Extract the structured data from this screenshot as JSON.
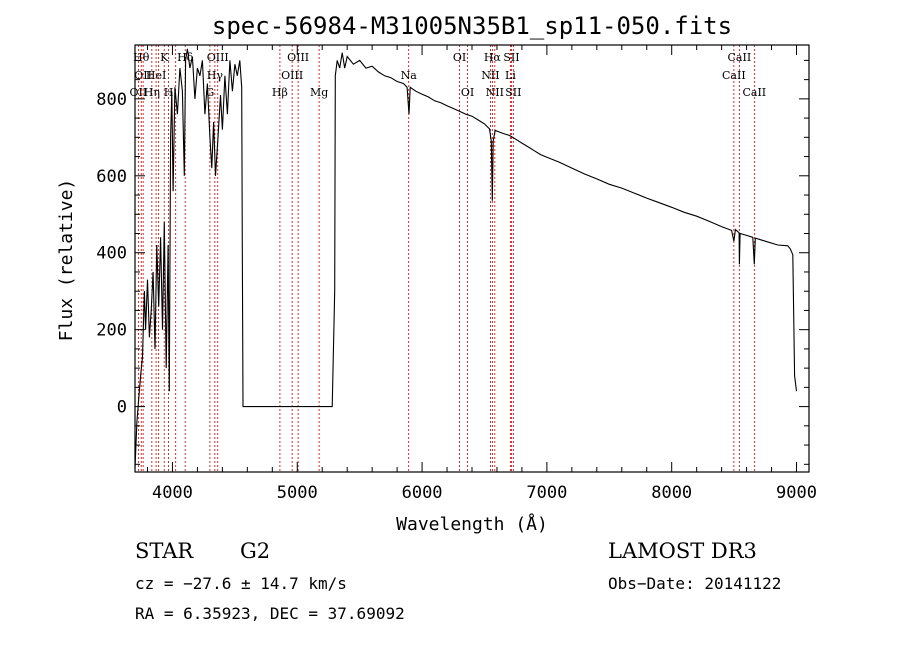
{
  "chart_data": {
    "type": "line",
    "title": "spec-56984-M31005N35B1_sp11-050.fits",
    "xlabel": "Wavelength (Å)",
    "ylabel": "Flux (relative)",
    "xlim": [
      3700,
      9100
    ],
    "ylim": [
      -170,
      940
    ],
    "x_ticks": [
      4000,
      5000,
      6000,
      7000,
      8000,
      9000
    ],
    "y_ticks": [
      0,
      200,
      400,
      600,
      800
    ],
    "x_minor_step": 200,
    "y_minor_step": 50,
    "grid": false,
    "series": [
      {
        "name": "spectrum",
        "points": [
          [
            3700,
            -160
          ],
          [
            3715,
            -40
          ],
          [
            3730,
            20
          ],
          [
            3745,
            80
          ],
          [
            3760,
            130
          ],
          [
            3775,
            300
          ],
          [
            3785,
            200
          ],
          [
            3800,
            330
          ],
          [
            3815,
            180
          ],
          [
            3830,
            250
          ],
          [
            3845,
            350
          ],
          [
            3860,
            150
          ],
          [
            3875,
            420
          ],
          [
            3890,
            260
          ],
          [
            3905,
            440
          ],
          [
            3920,
            200
          ],
          [
            3935,
            480
          ],
          [
            3950,
            100
          ],
          [
            3965,
            420
          ],
          [
            3975,
            40
          ],
          [
            3985,
            700
          ],
          [
            3995,
            820
          ],
          [
            4005,
            560
          ],
          [
            4020,
            830
          ],
          [
            4040,
            760
          ],
          [
            4060,
            880
          ],
          [
            4080,
            820
          ],
          [
            4095,
            600
          ],
          [
            4105,
            900
          ],
          [
            4120,
            930
          ],
          [
            4140,
            880
          ],
          [
            4160,
            910
          ],
          [
            4180,
            800
          ],
          [
            4200,
            880
          ],
          [
            4220,
            860
          ],
          [
            4240,
            900
          ],
          [
            4260,
            760
          ],
          [
            4280,
            840
          ],
          [
            4300,
            700
          ],
          [
            4315,
            620
          ],
          [
            4330,
            740
          ],
          [
            4345,
            600
          ],
          [
            4365,
            700
          ],
          [
            4385,
            810
          ],
          [
            4400,
            720
          ],
          [
            4420,
            860
          ],
          [
            4440,
            760
          ],
          [
            4460,
            900
          ],
          [
            4480,
            820
          ],
          [
            4500,
            890
          ],
          [
            4520,
            860
          ],
          [
            4540,
            900
          ],
          [
            4555,
            830
          ],
          [
            4560,
            420
          ],
          [
            4565,
            0
          ],
          [
            5280,
            0
          ],
          [
            5300,
            300
          ],
          [
            5305,
            860
          ],
          [
            5320,
            900
          ],
          [
            5340,
            880
          ],
          [
            5360,
            920
          ],
          [
            5380,
            880
          ],
          [
            5400,
            910
          ],
          [
            5450,
            890
          ],
          [
            5500,
            900
          ],
          [
            5550,
            880
          ],
          [
            5600,
            885
          ],
          [
            5650,
            870
          ],
          [
            5700,
            860
          ],
          [
            5750,
            855
          ],
          [
            5800,
            845
          ],
          [
            5850,
            840
          ],
          [
            5880,
            830
          ],
          [
            5895,
            760
          ],
          [
            5905,
            830
          ],
          [
            5950,
            820
          ],
          [
            6000,
            812
          ],
          [
            6050,
            805
          ],
          [
            6100,
            795
          ],
          [
            6150,
            790
          ],
          [
            6200,
            782
          ],
          [
            6250,
            775
          ],
          [
            6300,
            768
          ],
          [
            6350,
            760
          ],
          [
            6400,
            755
          ],
          [
            6450,
            745
          ],
          [
            6500,
            735
          ],
          [
            6540,
            722
          ],
          [
            6555,
            690
          ],
          [
            6563,
            535
          ],
          [
            6570,
            690
          ],
          [
            6585,
            718
          ],
          [
            6650,
            710
          ],
          [
            6700,
            705
          ],
          [
            6750,
            695
          ],
          [
            6800,
            685
          ],
          [
            6850,
            675
          ],
          [
            6900,
            665
          ],
          [
            6950,
            655
          ],
          [
            7000,
            648
          ],
          [
            7100,
            635
          ],
          [
            7200,
            620
          ],
          [
            7300,
            605
          ],
          [
            7400,
            592
          ],
          [
            7500,
            578
          ],
          [
            7600,
            568
          ],
          [
            7700,
            555
          ],
          [
            7800,
            542
          ],
          [
            7900,
            530
          ],
          [
            8000,
            518
          ],
          [
            8100,
            505
          ],
          [
            8200,
            495
          ],
          [
            8300,
            482
          ],
          [
            8400,
            468
          ],
          [
            8480,
            458
          ],
          [
            8498,
            430
          ],
          [
            8510,
            460
          ],
          [
            8540,
            452
          ],
          [
            8542,
            370
          ],
          [
            8548,
            450
          ],
          [
            8600,
            445
          ],
          [
            8650,
            440
          ],
          [
            8662,
            370
          ],
          [
            8670,
            438
          ],
          [
            8750,
            430
          ],
          [
            8850,
            420
          ],
          [
            8930,
            418
          ],
          [
            8950,
            410
          ],
          [
            8970,
            395
          ],
          [
            8985,
            80
          ],
          [
            9000,
            40
          ]
        ]
      }
    ],
    "lines": [
      {
        "wl": 3727,
        "label": "OII",
        "row": 2
      },
      {
        "wl": 3750,
        "label": "Hθ",
        "row": 0
      },
      {
        "wl": 3765,
        "label": "OII",
        "row": 1
      },
      {
        "wl": 3835,
        "label": "Hη",
        "row": 2
      },
      {
        "wl": 3869,
        "label": "HeI",
        "row": 1
      },
      {
        "wl": 3889,
        "label": "",
        "row": 1
      },
      {
        "wl": 3934,
        "label": "K",
        "row": 0
      },
      {
        "wl": 3969,
        "label": "H",
        "row": 2
      },
      {
        "wl": 4026,
        "label": "",
        "row": 1
      },
      {
        "wl": 4102,
        "label": "Hδ",
        "row": 0
      },
      {
        "wl": 4300,
        "label": "G",
        "row": 2
      },
      {
        "wl": 4340,
        "label": "Hγ",
        "row": 1
      },
      {
        "wl": 4363,
        "label": "OIII",
        "row": 0
      },
      {
        "wl": 4861,
        "label": "Hβ",
        "row": 2
      },
      {
        "wl": 4959,
        "label": "OIII",
        "row": 1
      },
      {
        "wl": 5007,
        "label": "OIII",
        "row": 0
      },
      {
        "wl": 5175,
        "label": "Mg",
        "row": 2
      },
      {
        "wl": 5893,
        "label": "Na",
        "row": 1
      },
      {
        "wl": 6300,
        "label": "OI",
        "row": 0
      },
      {
        "wl": 6364,
        "label": "OI",
        "row": 2
      },
      {
        "wl": 6548,
        "label": "NII",
        "row": 1
      },
      {
        "wl": 6563,
        "label": "Hα",
        "row": 0
      },
      {
        "wl": 6583,
        "label": "NII",
        "row": 2
      },
      {
        "wl": 6708,
        "label": "Li",
        "row": 1
      },
      {
        "wl": 6716,
        "label": "SII",
        "row": 0
      },
      {
        "wl": 6731,
        "label": "SII",
        "row": 2
      },
      {
        "wl": 8498,
        "label": "CaII",
        "row": 1
      },
      {
        "wl": 8542,
        "label": "CaII",
        "row": 0
      },
      {
        "wl": 8662,
        "label": "CaII",
        "row": 2
      }
    ],
    "colors": {
      "spectrum": "#000000",
      "lines": "#c00000"
    }
  },
  "info": {
    "class": "STAR",
    "subclass": "G2",
    "survey": "LAMOST DR3",
    "redshift": "cz = −27.6 ± 14.7 km/s",
    "obs_date": "Obs−Date: 20141122",
    "coords": "RA =   6.35923, DEC =  37.69092"
  }
}
